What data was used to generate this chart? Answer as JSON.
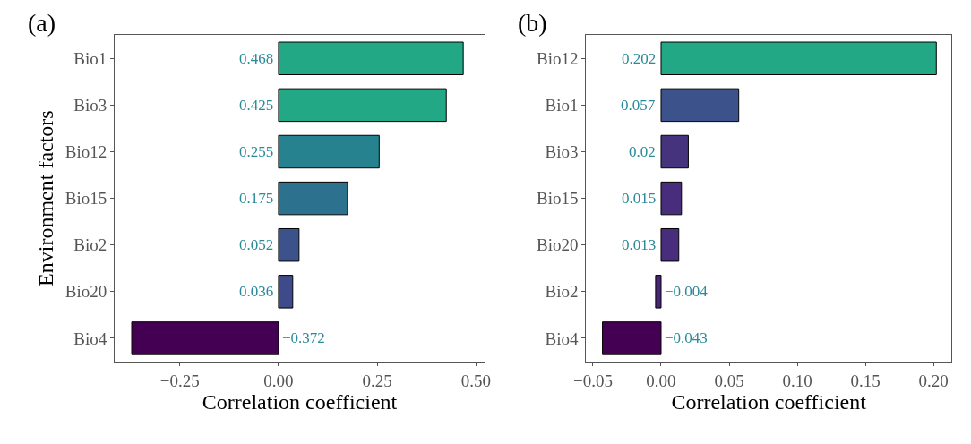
{
  "chart_data": [
    {
      "type": "bar",
      "orientation": "horizontal",
      "title": "(a)",
      "xlabel": "Correlation coefficient",
      "ylabel": "Environment factors",
      "categories": [
        "Bio1",
        "Bio3",
        "Bio12",
        "Bio15",
        "Bio2",
        "Bio20",
        "Bio4"
      ],
      "values": [
        0.468,
        0.425,
        0.255,
        0.175,
        0.052,
        0.036,
        -0.372
      ],
      "value_labels": [
        "0.468",
        "0.425",
        "0.255",
        "0.175",
        "0.052",
        "0.036",
        "−0.372"
      ],
      "colors": [
        "#22a884",
        "#22a884",
        "#26828e",
        "#2c728e",
        "#3b528b",
        "#3e4a89",
        "#440154"
      ],
      "xlim": [
        -0.415,
        0.522
      ],
      "xticks": [
        {
          "value": -0.25,
          "label": "−0.25"
        },
        {
          "value": 0,
          "label": "0.00"
        },
        {
          "value": 0.25,
          "label": "0.25"
        },
        {
          "value": 0.5,
          "label": "0.50"
        }
      ]
    },
    {
      "type": "bar",
      "orientation": "horizontal",
      "title": "(b)",
      "xlabel": "Correlation coefficient",
      "categories": [
        "Bio12",
        "Bio1",
        "Bio3",
        "Bio15",
        "Bio20",
        "Bio2",
        "Bio4"
      ],
      "values": [
        0.202,
        0.057,
        0.02,
        0.015,
        0.013,
        -0.004,
        -0.043
      ],
      "value_labels": [
        "0.202",
        "0.057",
        "0.02",
        "0.015",
        "0.013",
        "−0.004",
        "−0.043"
      ],
      "colors": [
        "#22a884",
        "#3b528b",
        "#46337e",
        "#472d7b",
        "#472d7b",
        "#482576",
        "#440154"
      ],
      "xlim": [
        -0.055,
        0.213
      ],
      "xticks": [
        {
          "value": -0.05,
          "label": "−0.05"
        },
        {
          "value": 0,
          "label": "0.00"
        },
        {
          "value": 0.05,
          "label": "0.05"
        },
        {
          "value": 0.1,
          "label": "0.10"
        },
        {
          "value": 0.15,
          "label": "0.15"
        },
        {
          "value": 0.2,
          "label": "0.20"
        }
      ]
    }
  ]
}
